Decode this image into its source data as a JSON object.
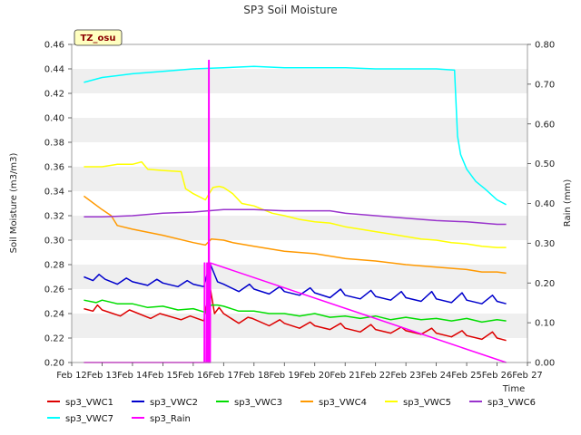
{
  "chart_data": {
    "type": "line",
    "title": "SP3 Soil Moisture",
    "ylabel": "Soil Moisture (m3/m3)",
    "y2label": "Rain (mm)",
    "xlabel": "Time",
    "tag": "TZ_osu",
    "xlim": [
      12,
      27
    ],
    "ylim": [
      0.2,
      0.46
    ],
    "y2lim": [
      0.0,
      0.8
    ],
    "grid": "horizontal bands",
    "legend_position": "bottom",
    "x_ticks": [
      {
        "v": 12,
        "label": "Feb 12"
      },
      {
        "v": 13,
        "label": "Feb 13"
      },
      {
        "v": 14,
        "label": "Feb 14"
      },
      {
        "v": 15,
        "label": "Feb 15"
      },
      {
        "v": 16,
        "label": "Feb 16"
      },
      {
        "v": 17,
        "label": "Feb 17"
      },
      {
        "v": 18,
        "label": "Feb 18"
      },
      {
        "v": 19,
        "label": "Feb 19"
      },
      {
        "v": 20,
        "label": "Feb 20"
      },
      {
        "v": 21,
        "label": "Feb 21"
      },
      {
        "v": 22,
        "label": "Feb 22"
      },
      {
        "v": 23,
        "label": "Feb 23"
      },
      {
        "v": 24,
        "label": "Feb 24"
      },
      {
        "v": 25,
        "label": "Feb 25"
      },
      {
        "v": 26,
        "label": "Feb 26"
      },
      {
        "v": 27,
        "label": "Feb 27"
      }
    ],
    "y_ticks": [
      {
        "v": 0.2,
        "label": "0.20"
      },
      {
        "v": 0.22,
        "label": "0.22"
      },
      {
        "v": 0.24,
        "label": "0.24"
      },
      {
        "v": 0.26,
        "label": "0.26"
      },
      {
        "v": 0.28,
        "label": "0.28"
      },
      {
        "v": 0.3,
        "label": "0.30"
      },
      {
        "v": 0.32,
        "label": "0.32"
      },
      {
        "v": 0.34,
        "label": "0.34"
      },
      {
        "v": 0.36,
        "label": "0.36"
      },
      {
        "v": 0.38,
        "label": "0.38"
      },
      {
        "v": 0.4,
        "label": "0.40"
      },
      {
        "v": 0.42,
        "label": "0.42"
      },
      {
        "v": 0.44,
        "label": "0.44"
      },
      {
        "v": 0.46,
        "label": "0.46"
      }
    ],
    "y2_ticks": [
      {
        "v": 0.0,
        "label": "0.00"
      },
      {
        "v": 0.1,
        "label": "0.10"
      },
      {
        "v": 0.2,
        "label": "0.20"
      },
      {
        "v": 0.3,
        "label": "0.30"
      },
      {
        "v": 0.4,
        "label": "0.40"
      },
      {
        "v": 0.5,
        "label": "0.50"
      },
      {
        "v": 0.6,
        "label": "0.60"
      },
      {
        "v": 0.7,
        "label": "0.70"
      },
      {
        "v": 0.8,
        "label": "0.80"
      }
    ],
    "series": [
      {
        "name": "sp3_VWC1",
        "color": "#dd0000",
        "axis": "left",
        "x": [
          12.4,
          12.7,
          12.85,
          13.0,
          13.6,
          13.9,
          14.6,
          14.9,
          15.6,
          15.9,
          16.35,
          16.55,
          16.7,
          16.85,
          17.0,
          17.5,
          17.8,
          17.95,
          18.5,
          18.85,
          19.0,
          19.5,
          19.85,
          20.0,
          20.5,
          20.85,
          21.0,
          21.5,
          21.85,
          22.0,
          22.5,
          22.85,
          23.0,
          23.5,
          23.85,
          24.0,
          24.5,
          24.85,
          25.0,
          25.5,
          25.85,
          26.0,
          26.3
        ],
        "y": [
          0.244,
          0.242,
          0.247,
          0.243,
          0.238,
          0.243,
          0.236,
          0.24,
          0.235,
          0.238,
          0.234,
          0.262,
          0.24,
          0.245,
          0.24,
          0.232,
          0.237,
          0.236,
          0.23,
          0.235,
          0.232,
          0.228,
          0.233,
          0.23,
          0.227,
          0.232,
          0.228,
          0.225,
          0.231,
          0.227,
          0.224,
          0.229,
          0.226,
          0.223,
          0.228,
          0.224,
          0.221,
          0.226,
          0.222,
          0.219,
          0.225,
          0.22,
          0.218
        ]
      },
      {
        "name": "sp3_VWC2",
        "color": "#0000cc",
        "axis": "left",
        "x": [
          12.4,
          12.7,
          12.9,
          13.1,
          13.5,
          13.8,
          14.0,
          14.5,
          14.8,
          15.0,
          15.5,
          15.8,
          16.0,
          16.35,
          16.55,
          16.8,
          17.0,
          17.5,
          17.85,
          18.0,
          18.5,
          18.85,
          19.0,
          19.5,
          19.85,
          20.0,
          20.5,
          20.85,
          21.0,
          21.5,
          21.85,
          22.0,
          22.5,
          22.85,
          23.0,
          23.5,
          23.85,
          24.0,
          24.5,
          24.85,
          25.0,
          25.5,
          25.85,
          26.0,
          26.3
        ],
        "y": [
          0.27,
          0.267,
          0.272,
          0.268,
          0.264,
          0.269,
          0.266,
          0.263,
          0.268,
          0.265,
          0.262,
          0.267,
          0.264,
          0.262,
          0.281,
          0.266,
          0.264,
          0.258,
          0.264,
          0.26,
          0.256,
          0.262,
          0.258,
          0.255,
          0.261,
          0.257,
          0.253,
          0.26,
          0.255,
          0.252,
          0.259,
          0.254,
          0.251,
          0.258,
          0.253,
          0.25,
          0.258,
          0.252,
          0.249,
          0.257,
          0.251,
          0.248,
          0.255,
          0.25,
          0.248
        ]
      },
      {
        "name": "sp3_VWC3",
        "color": "#00dd00",
        "axis": "left",
        "x": [
          12.4,
          12.8,
          13.0,
          13.5,
          14.0,
          14.5,
          15.0,
          15.5,
          16.0,
          16.4,
          16.6,
          16.8,
          17.0,
          17.5,
          18.0,
          18.5,
          19.0,
          19.5,
          20.0,
          20.5,
          21.0,
          21.5,
          22.0,
          22.5,
          23.0,
          23.5,
          24.0,
          24.5,
          25.0,
          25.5,
          26.0,
          26.3
        ],
        "y": [
          0.251,
          0.249,
          0.251,
          0.248,
          0.248,
          0.245,
          0.246,
          0.243,
          0.244,
          0.241,
          0.247,
          0.247,
          0.246,
          0.242,
          0.242,
          0.24,
          0.24,
          0.238,
          0.24,
          0.237,
          0.238,
          0.236,
          0.238,
          0.235,
          0.237,
          0.235,
          0.236,
          0.234,
          0.236,
          0.233,
          0.235,
          0.234
        ]
      },
      {
        "name": "sp3_VWC4",
        "color": "#ff9900",
        "axis": "left",
        "x": [
          12.4,
          13.0,
          13.3,
          13.5,
          14.0,
          15.0,
          16.0,
          16.4,
          16.6,
          17.0,
          17.3,
          18.0,
          19.0,
          20.0,
          21.0,
          22.0,
          23.0,
          24.0,
          25.0,
          25.5,
          26.0,
          26.3
        ],
        "y": [
          0.336,
          0.325,
          0.32,
          0.312,
          0.309,
          0.304,
          0.298,
          0.296,
          0.301,
          0.3,
          0.298,
          0.295,
          0.291,
          0.289,
          0.285,
          0.283,
          0.28,
          0.278,
          0.276,
          0.274,
          0.274,
          0.273
        ]
      },
      {
        "name": "sp3_VWC5",
        "color": "#ffff00",
        "axis": "left",
        "x": [
          12.4,
          13.0,
          13.5,
          14.0,
          14.3,
          14.5,
          15.0,
          15.6,
          15.75,
          16.0,
          16.4,
          16.65,
          16.85,
          17.0,
          17.3,
          17.6,
          18.0,
          18.6,
          19.0,
          19.5,
          20.0,
          20.5,
          21.0,
          21.5,
          22.0,
          22.5,
          23.0,
          23.5,
          24.0,
          24.5,
          25.0,
          25.5,
          26.0,
          26.3
        ],
        "y": [
          0.36,
          0.36,
          0.362,
          0.362,
          0.364,
          0.358,
          0.357,
          0.356,
          0.342,
          0.338,
          0.333,
          0.343,
          0.344,
          0.343,
          0.338,
          0.33,
          0.328,
          0.322,
          0.32,
          0.317,
          0.315,
          0.314,
          0.311,
          0.309,
          0.307,
          0.305,
          0.303,
          0.301,
          0.3,
          0.298,
          0.297,
          0.295,
          0.294,
          0.294
        ]
      },
      {
        "name": "sp3_VWC6",
        "color": "#9933cc",
        "axis": "left",
        "x": [
          12.4,
          13.0,
          14.0,
          15.0,
          16.0,
          16.5,
          17.0,
          18.0,
          19.0,
          20.0,
          20.5,
          21.0,
          22.0,
          23.0,
          24.0,
          25.0,
          26.0,
          26.3
        ],
        "y": [
          0.319,
          0.319,
          0.32,
          0.322,
          0.323,
          0.324,
          0.325,
          0.325,
          0.324,
          0.324,
          0.324,
          0.322,
          0.32,
          0.318,
          0.316,
          0.315,
          0.313,
          0.313
        ]
      },
      {
        "name": "sp3_VWC7",
        "color": "#00ffff",
        "axis": "left",
        "x": [
          12.4,
          13.0,
          14.0,
          15.0,
          16.0,
          17.0,
          18.0,
          19.0,
          20.0,
          21.0,
          22.0,
          23.0,
          24.0,
          24.6,
          24.7,
          24.8,
          25.0,
          25.3,
          25.6,
          26.0,
          26.3
        ],
        "y": [
          0.429,
          0.433,
          0.436,
          0.438,
          0.44,
          0.441,
          0.442,
          0.441,
          0.441,
          0.441,
          0.44,
          0.44,
          0.44,
          0.439,
          0.385,
          0.37,
          0.358,
          0.348,
          0.342,
          0.333,
          0.329
        ]
      },
      {
        "name": "sp3_Rain",
        "color": "#ff00ff",
        "axis": "right",
        "x": [
          12.4,
          16.36,
          16.37,
          16.38,
          16.39,
          16.4,
          16.44,
          16.45,
          16.46,
          16.47,
          16.48,
          16.5,
          16.51,
          16.52,
          16.53,
          16.54,
          16.56,
          16.57,
          16.58,
          26.3
        ],
        "y": [
          0.0,
          0.0,
          0.25,
          0.25,
          0.0,
          0.0,
          0.0,
          0.25,
          0.25,
          0.0,
          0.0,
          0.0,
          0.76,
          0.76,
          0.0,
          0.0,
          0.0,
          0.25,
          0.25,
          0.0
        ]
      }
    ]
  }
}
